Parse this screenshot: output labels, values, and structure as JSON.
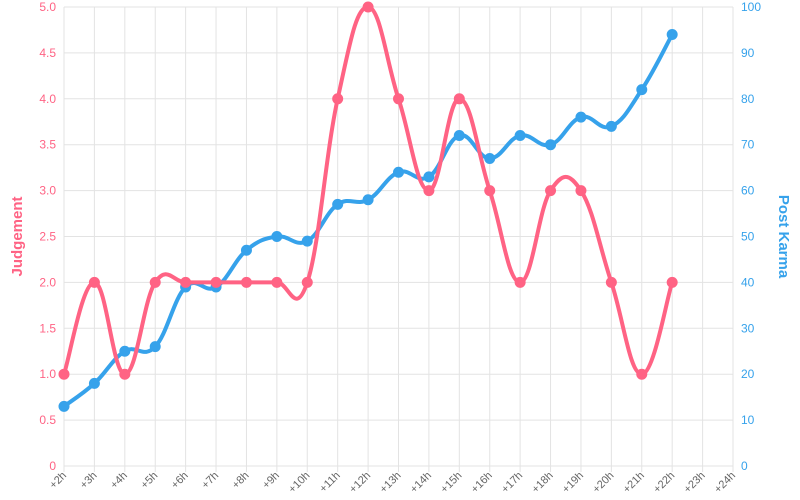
{
  "chart_data": {
    "type": "line",
    "x": [
      "+2h",
      "+3h",
      "+4h",
      "+5h",
      "+6h",
      "+7h",
      "+8h",
      "+9h",
      "+10h",
      "+11h",
      "+12h",
      "+13h",
      "+14h",
      "+15h",
      "+16h",
      "+17h",
      "+18h",
      "+19h",
      "+20h",
      "+21h",
      "+22h",
      "+23h",
      "+24h"
    ],
    "series": [
      {
        "name": "Judgement",
        "axis": "left",
        "color": "#ff6384",
        "values": [
          1,
          2,
          1,
          2,
          2,
          2,
          2,
          2,
          2,
          4,
          5,
          4,
          3,
          4,
          3,
          2,
          3,
          3,
          2,
          1,
          2,
          null,
          null
        ]
      },
      {
        "name": "Post Karma",
        "axis": "right",
        "color": "#36a2eb",
        "values": [
          13,
          18,
          25,
          26,
          39,
          39,
          47,
          50,
          49,
          57,
          58,
          64,
          63,
          72,
          67,
          72,
          70,
          76,
          74,
          82,
          94,
          null,
          null
        ]
      }
    ],
    "ylabel_left": "Judgement",
    "ylabel_right": "Post Karma",
    "ylim_left": [
      0,
      5
    ],
    "yticks_left": [
      "0",
      "0.5",
      "1.0",
      "1.5",
      "2.0",
      "2.5",
      "3.0",
      "3.5",
      "4.0",
      "4.5",
      "5.0"
    ],
    "ylim_right": [
      0,
      100
    ],
    "yticks_right": [
      "0",
      "10",
      "20",
      "30",
      "40",
      "50",
      "60",
      "70",
      "80",
      "90",
      "100"
    ],
    "grid": true,
    "legend": "none",
    "colors": {
      "left": "#ff6384",
      "right": "#36a2eb",
      "grid": "#e3e3e3",
      "xtick": "#666666"
    }
  }
}
